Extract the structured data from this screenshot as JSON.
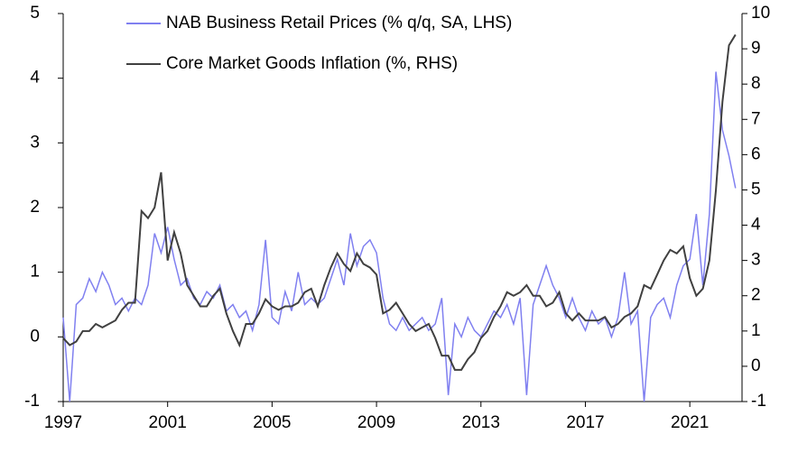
{
  "chart_data": {
    "type": "line",
    "x": [
      1997,
      1997.25,
      1997.5,
      1997.75,
      1998,
      1998.25,
      1998.5,
      1998.75,
      1999,
      1999.25,
      1999.5,
      1999.75,
      2000,
      2000.25,
      2000.5,
      2000.75,
      2001,
      2001.25,
      2001.5,
      2001.75,
      2002,
      2002.25,
      2002.5,
      2002.75,
      2003,
      2003.25,
      2003.5,
      2003.75,
      2004,
      2004.25,
      2004.5,
      2004.75,
      2005,
      2005.25,
      2005.5,
      2005.75,
      2006,
      2006.25,
      2006.5,
      2006.75,
      2007,
      2007.25,
      2007.5,
      2007.75,
      2008,
      2008.25,
      2008.5,
      2008.75,
      2009,
      2009.25,
      2009.5,
      2009.75,
      2010,
      2010.25,
      2010.5,
      2010.75,
      2011,
      2011.25,
      2011.5,
      2011.75,
      2012,
      2012.25,
      2012.5,
      2012.75,
      2013,
      2013.25,
      2013.5,
      2013.75,
      2014,
      2014.25,
      2014.5,
      2014.75,
      2015,
      2015.25,
      2015.5,
      2015.75,
      2016,
      2016.25,
      2016.5,
      2016.75,
      2017,
      2017.25,
      2017.5,
      2017.75,
      2018,
      2018.25,
      2018.5,
      2018.75,
      2019,
      2019.25,
      2019.5,
      2019.75,
      2020,
      2020.25,
      2020.5,
      2020.75,
      2021,
      2021.25,
      2021.5,
      2021.75,
      2022,
      2022.25,
      2022.5,
      2022.75
    ],
    "series": [
      {
        "name": "NAB Business Retail Prices (% q/q, SA, LHS)",
        "color": "#8080f0",
        "axis": "y",
        "values": [
          0.3,
          -1.0,
          0.5,
          0.6,
          0.9,
          0.7,
          1.0,
          0.8,
          0.5,
          0.6,
          0.4,
          0.6,
          0.5,
          0.8,
          1.6,
          1.3,
          1.7,
          1.2,
          0.8,
          0.9,
          0.6,
          0.5,
          0.7,
          0.6,
          0.8,
          0.4,
          0.5,
          0.3,
          0.4,
          0.1,
          0.5,
          1.5,
          0.3,
          0.2,
          0.7,
          0.4,
          1.0,
          0.5,
          0.6,
          0.5,
          0.6,
          0.9,
          1.2,
          0.8,
          1.6,
          1.1,
          1.4,
          1.5,
          1.3,
          0.6,
          0.2,
          0.1,
          0.3,
          0.1,
          0.2,
          0.3,
          0.1,
          0.2,
          0.6,
          -0.9,
          0.2,
          0.0,
          0.3,
          0.1,
          0.0,
          0.2,
          0.4,
          0.3,
          0.5,
          0.2,
          0.6,
          -0.9,
          0.5,
          0.8,
          1.1,
          0.8,
          0.6,
          0.3,
          0.6,
          0.3,
          0.1,
          0.4,
          0.2,
          0.3,
          0.0,
          0.3,
          1.0,
          0.2,
          0.4,
          -1.0,
          0.3,
          0.5,
          0.6,
          0.3,
          0.8,
          1.1,
          1.2,
          1.9,
          0.8,
          1.9,
          4.1,
          3.2,
          2.8,
          2.3
        ]
      },
      {
        "name": "Core Market Goods Inflation (%, RHS)",
        "color": "#404040",
        "axis": "y2",
        "values": [
          0.8,
          0.6,
          0.7,
          1.0,
          1.0,
          1.2,
          1.1,
          1.2,
          1.3,
          1.6,
          1.8,
          1.8,
          4.4,
          4.2,
          4.5,
          5.5,
          3.0,
          3.8,
          3.2,
          2.3,
          2.0,
          1.7,
          1.7,
          2.0,
          2.2,
          1.5,
          1.0,
          0.6,
          1.2,
          1.2,
          1.5,
          1.9,
          1.7,
          1.6,
          1.7,
          1.7,
          1.8,
          2.1,
          2.2,
          1.7,
          2.3,
          2.8,
          3.2,
          2.9,
          2.7,
          3.2,
          2.9,
          2.8,
          2.6,
          1.5,
          1.6,
          1.8,
          1.5,
          1.2,
          1.0,
          1.1,
          1.2,
          0.8,
          0.3,
          0.3,
          -0.1,
          -0.1,
          0.2,
          0.4,
          0.8,
          1.0,
          1.4,
          1.7,
          2.1,
          2.0,
          2.1,
          2.3,
          2.0,
          2.0,
          1.7,
          1.8,
          2.1,
          1.5,
          1.3,
          1.5,
          1.3,
          1.3,
          1.3,
          1.4,
          1.1,
          1.2,
          1.4,
          1.5,
          1.7,
          2.3,
          2.2,
          2.6,
          3.0,
          3.3,
          3.2,
          3.4,
          2.5,
          2.0,
          2.2,
          3.0,
          5.0,
          7.5,
          9.1,
          9.4
        ]
      }
    ],
    "xlim": [
      1997,
      2023
    ],
    "xticks": [
      1997,
      2001,
      2005,
      2009,
      2013,
      2017,
      2021
    ],
    "ylim": [
      -1,
      5
    ],
    "yticks": [
      -1,
      0,
      1,
      2,
      3,
      4,
      5
    ],
    "y2lim": [
      -1,
      10
    ],
    "y2ticks": [
      -1,
      0,
      1,
      2,
      3,
      4,
      5,
      6,
      7,
      8,
      9,
      10
    ]
  }
}
